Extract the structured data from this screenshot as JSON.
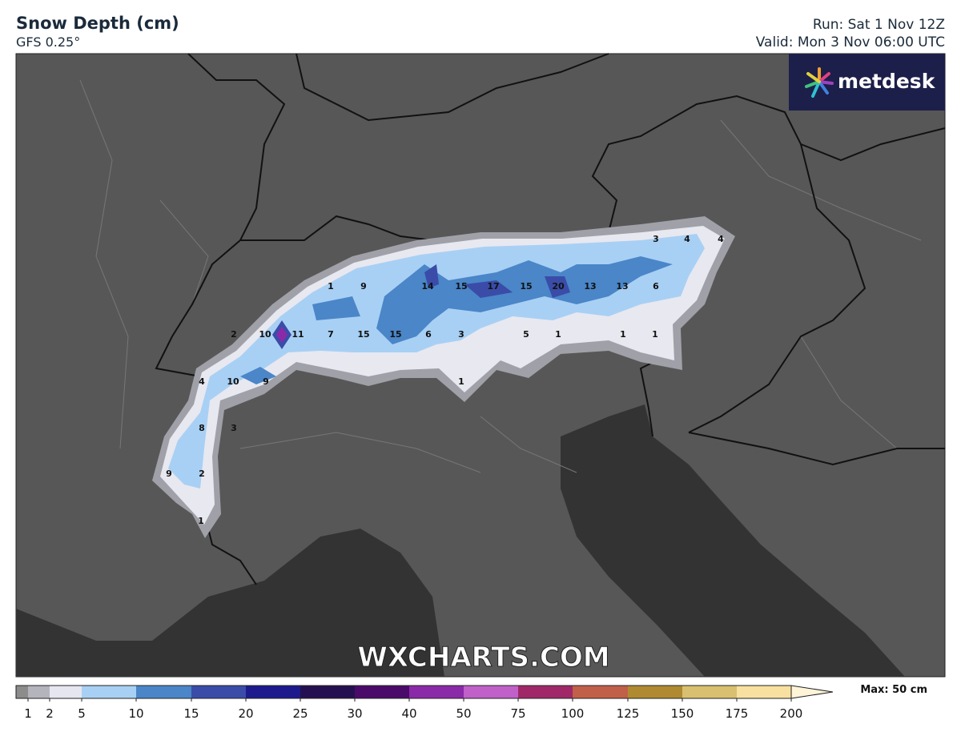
{
  "header": {
    "title": "Snow Depth (cm)",
    "subtitle": "GFS 0.25°",
    "run": "Run: Sat 1 Nov 12Z",
    "valid": "Valid: Mon 3 Nov 06:00 UTC"
  },
  "logo": "metdesk",
  "watermark": "WXCHARTS.COM",
  "points": [
    3,
    4,
    4,
    1,
    9,
    14,
    15,
    17,
    15,
    20,
    13,
    13,
    6,
    2,
    10,
    11,
    7,
    15,
    15,
    6,
    3,
    5,
    1,
    1,
    1,
    4,
    10,
    9,
    1,
    8,
    3,
    9,
    2,
    1
  ],
  "legend": {
    "max_label": "Max: 50 cm",
    "ticks": [
      1,
      2,
      5,
      10,
      15,
      20,
      25,
      30,
      40,
      50,
      75,
      100,
      125,
      150,
      175,
      200
    ],
    "colors": [
      "#8c8c8c",
      "#b4b4bc",
      "#e6e6f0",
      "#a8d0f4",
      "#4a86c8",
      "#3a4ca8",
      "#1c1a8c",
      "#241050",
      "#4a0a6a",
      "#8a2aa8",
      "#c060c8",
      "#a02868",
      "#c06048",
      "#b08a30",
      "#d8c070",
      "#f8e0a0",
      "#fff4d8"
    ]
  }
}
